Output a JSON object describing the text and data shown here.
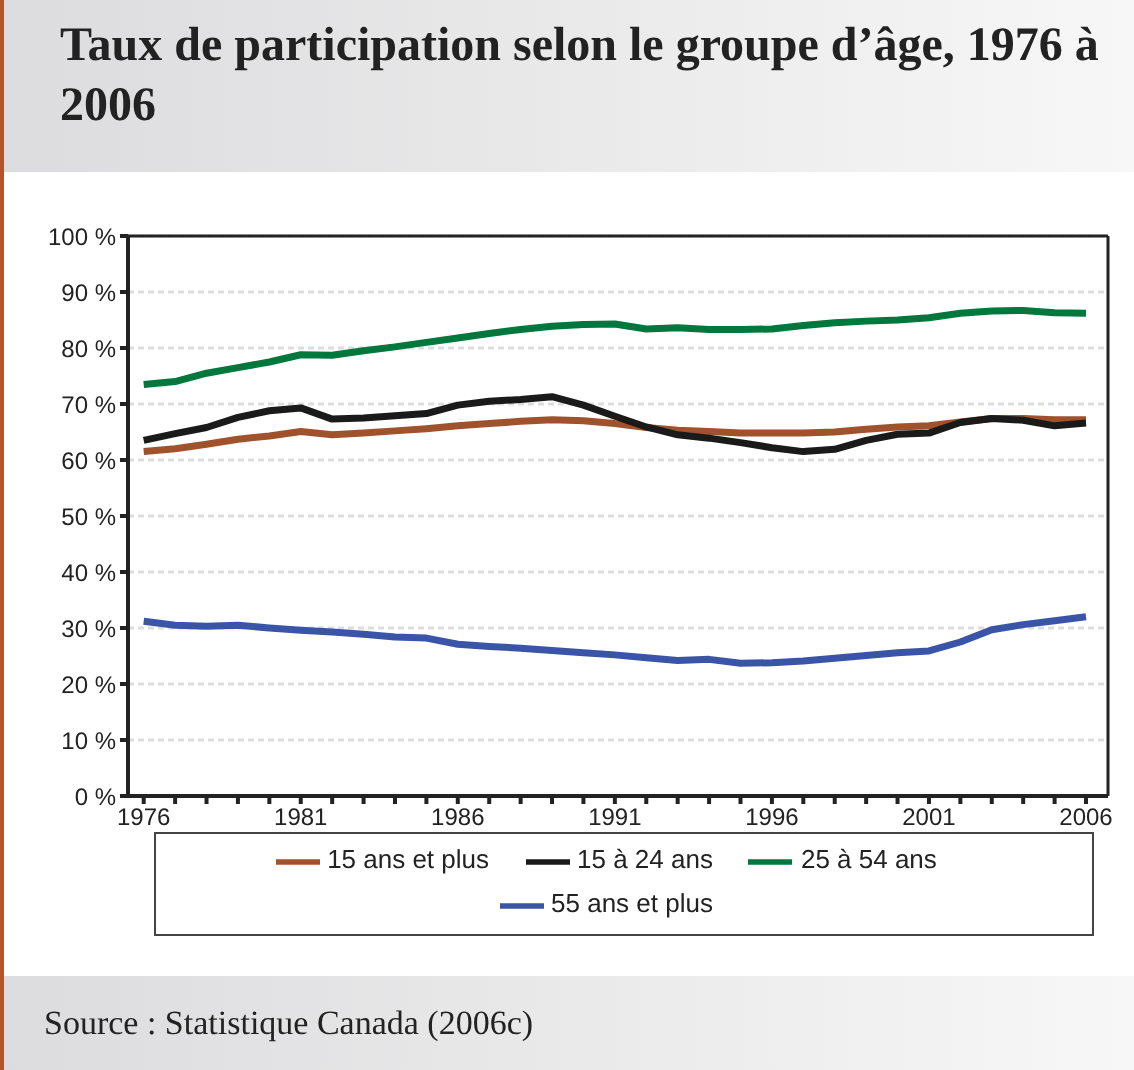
{
  "chart_data": {
    "type": "line",
    "title": "Taux de participation selon le groupe d’âge, 1976 à 2006",
    "x": [
      1976,
      1977,
      1978,
      1979,
      1980,
      1981,
      1982,
      1983,
      1984,
      1985,
      1986,
      1987,
      1988,
      1989,
      1990,
      1991,
      1992,
      1993,
      1994,
      1995,
      1996,
      1997,
      1998,
      1999,
      2000,
      2001,
      2002,
      2003,
      2004,
      2005,
      2006
    ],
    "series": [
      {
        "name": "15 ans et plus",
        "color": "#a0522d",
        "values": [
          61.5,
          62,
          62.8,
          63.7,
          64.3,
          65.1,
          64.5,
          64.8,
          65.2,
          65.6,
          66.1,
          66.5,
          66.9,
          67.2,
          67,
          66.5,
          65.8,
          65.3,
          65.1,
          64.8,
          64.8,
          64.8,
          65,
          65.5,
          65.9,
          66.1,
          66.8,
          67.4,
          67.4,
          67.2,
          67.2
        ]
      },
      {
        "name": "15 à 24 ans",
        "color": "#1a1a1a",
        "values": [
          63.5,
          64.7,
          65.8,
          67.6,
          68.8,
          69.3,
          67.3,
          67.5,
          67.9,
          68.3,
          69.8,
          70.5,
          70.8,
          71.3,
          69.8,
          67.8,
          65.9,
          64.5,
          63.9,
          63.1,
          62.2,
          61.5,
          61.9,
          63.5,
          64.6,
          64.8,
          66.7,
          67.4,
          67.1,
          66.1,
          66.6
        ]
      },
      {
        "name": "25 à 54 ans",
        "color": "#00773c",
        "values": [
          73.5,
          74,
          75.5,
          76.5,
          77.5,
          78.8,
          78.7,
          79.5,
          80.2,
          81,
          81.8,
          82.6,
          83.3,
          83.9,
          84.2,
          84.3,
          83.4,
          83.6,
          83.3,
          83.3,
          83.4,
          84,
          84.5,
          84.8,
          85,
          85.4,
          86.2,
          86.6,
          86.7,
          86.3,
          86.2
        ]
      },
      {
        "name": "55 ans et plus",
        "color": "#3a55a8",
        "values": [
          31.2,
          30.5,
          30.3,
          30.5,
          30,
          29.6,
          29.3,
          28.9,
          28.4,
          28.2,
          27.1,
          26.7,
          26.4,
          26,
          25.6,
          25.2,
          24.7,
          24.2,
          24.4,
          23.7,
          23.8,
          24.1,
          24.6,
          25.1,
          25.6,
          25.9,
          27.5,
          29.7,
          30.6,
          31.3,
          32
        ]
      }
    ],
    "xlim": [
      1975.5,
      2006.7
    ],
    "xticks": [
      1976,
      {
        "value": 1977,
        "label": null
      },
      {
        "value": 1978,
        "label": null
      },
      {
        "value": 1979,
        "label": null
      },
      {
        "value": 1980,
        "label": null
      },
      1981,
      {
        "value": 1982,
        "label": null
      },
      {
        "value": 1983,
        "label": null
      },
      {
        "value": 1984,
        "label": null
      },
      {
        "value": 1985,
        "label": null
      },
      1986,
      {
        "value": 1987,
        "label": null
      },
      {
        "value": 1988,
        "label": null
      },
      {
        "value": 1989,
        "label": null
      },
      {
        "value": 1990,
        "label": null
      },
      1991,
      {
        "value": 1992,
        "label": null
      },
      {
        "value": 1993,
        "label": null
      },
      {
        "value": 1994,
        "label": null
      },
      {
        "value": 1995,
        "label": null
      },
      1996,
      {
        "value": 1997,
        "label": null
      },
      {
        "value": 1998,
        "label": null
      },
      {
        "value": 1999,
        "label": null
      },
      {
        "value": 2000,
        "label": null
      },
      2001,
      {
        "value": 2002,
        "label": null
      },
      {
        "value": 2003,
        "label": null
      },
      {
        "value": 2004,
        "label": null
      },
      {
        "value": 2005,
        "label": null
      },
      2006
    ],
    "ylim": [
      0,
      100
    ],
    "yticks": [
      {
        "value": 0,
        "label": "0 %"
      },
      {
        "value": 10,
        "label": "10 %"
      },
      {
        "value": 20,
        "label": "20 %"
      },
      {
        "value": 30,
        "label": "30 %"
      },
      {
        "value": 40,
        "label": "40 %"
      },
      {
        "value": 50,
        "label": "50 %"
      },
      {
        "value": 60,
        "label": "60 %"
      },
      {
        "value": 70,
        "label": "70 %"
      },
      {
        "value": 80,
        "label": "80 %"
      },
      {
        "value": 90,
        "label": "90 %"
      },
      {
        "value": 100,
        "label": "100 %"
      }
    ],
    "grid": "y",
    "legend": "bottom",
    "marker": "none",
    "line_style": "solid",
    "annotations": [
      "Source : Statistique Canada (2006c)"
    ]
  }
}
